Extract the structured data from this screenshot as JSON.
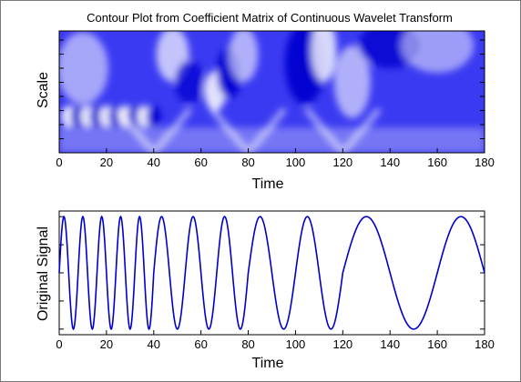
{
  "chart_data": [
    {
      "type": "heatmap",
      "title": "Contour Plot from Coefficient Matrix of Continuous Wavelet Transform",
      "xlabel": "Time",
      "ylabel": "Scale",
      "xlim": [
        0,
        180
      ],
      "xticks": [
        0,
        20,
        40,
        60,
        80,
        100,
        120,
        140,
        160,
        180
      ],
      "colormap": [
        "#0000e6",
        "#ffffff"
      ],
      "grid": false
    },
    {
      "type": "line",
      "title": "",
      "xlabel": "Time",
      "ylabel": "Original Signal",
      "xlim": [
        0,
        180
      ],
      "ylim": [
        -1.1,
        1.1
      ],
      "xticks": [
        0,
        20,
        40,
        60,
        80,
        100,
        120,
        140,
        160,
        180
      ],
      "grid": false,
      "series": [
        {
          "color": "#0000cc",
          "segments": [
            {
              "x_start": 0,
              "x_end": 40,
              "period": 8
            },
            {
              "x_start": 40,
              "x_end": 80,
              "period": 13.33
            },
            {
              "x_start": 80,
              "x_end": 120,
              "period": 20
            },
            {
              "x_start": 120,
              "x_end": 180,
              "period": 40
            }
          ],
          "x": [
            0,
            2,
            4,
            6,
            8,
            10,
            12,
            14,
            16,
            18,
            20,
            22,
            24,
            26,
            28,
            30,
            32,
            34,
            36,
            38,
            40,
            42,
            44,
            46,
            48,
            50,
            52,
            54,
            56,
            58,
            60,
            62,
            64,
            66,
            68,
            70,
            72,
            74,
            76,
            78,
            80,
            82,
            84,
            86,
            88,
            90,
            92,
            94,
            96,
            98,
            100,
            102,
            104,
            106,
            108,
            110,
            112,
            114,
            116,
            118,
            120,
            122,
            124,
            126,
            128,
            130,
            132,
            134,
            136,
            138,
            140,
            142,
            144,
            146,
            148,
            150,
            152,
            154,
            156,
            158,
            160,
            162,
            164,
            166,
            168,
            170,
            172,
            174,
            176,
            178,
            180
          ],
          "y": [
            0,
            1,
            0,
            -1,
            0,
            1,
            0,
            -1,
            0,
            1,
            0,
            -1,
            0,
            1,
            0,
            -1,
            0,
            1,
            0,
            -1,
            0,
            0.81,
            0.95,
            0.31,
            -0.59,
            -1,
            -0.59,
            0.31,
            0.95,
            0.81,
            0,
            -0.81,
            -0.95,
            -0.31,
            0.59,
            1,
            0.59,
            -0.31,
            -0.95,
            -0.81,
            0,
            0.59,
            0.95,
            0.95,
            0.59,
            0,
            -0.59,
            -0.95,
            -0.95,
            -0.59,
            0,
            0.59,
            0.95,
            0.95,
            0.59,
            0,
            -0.59,
            -0.95,
            -0.95,
            -0.59,
            0,
            0.31,
            0.59,
            0.81,
            0.95,
            1,
            0.95,
            0.81,
            0.59,
            0.31,
            0,
            -0.31,
            -0.59,
            -0.81,
            -0.95,
            -1,
            -0.95,
            -0.81,
            -0.59,
            -0.31,
            0,
            0.31,
            0.59,
            0.81,
            0.95,
            1,
            0.95,
            0.81,
            0.59,
            0.31,
            0
          ]
        }
      ]
    }
  ]
}
